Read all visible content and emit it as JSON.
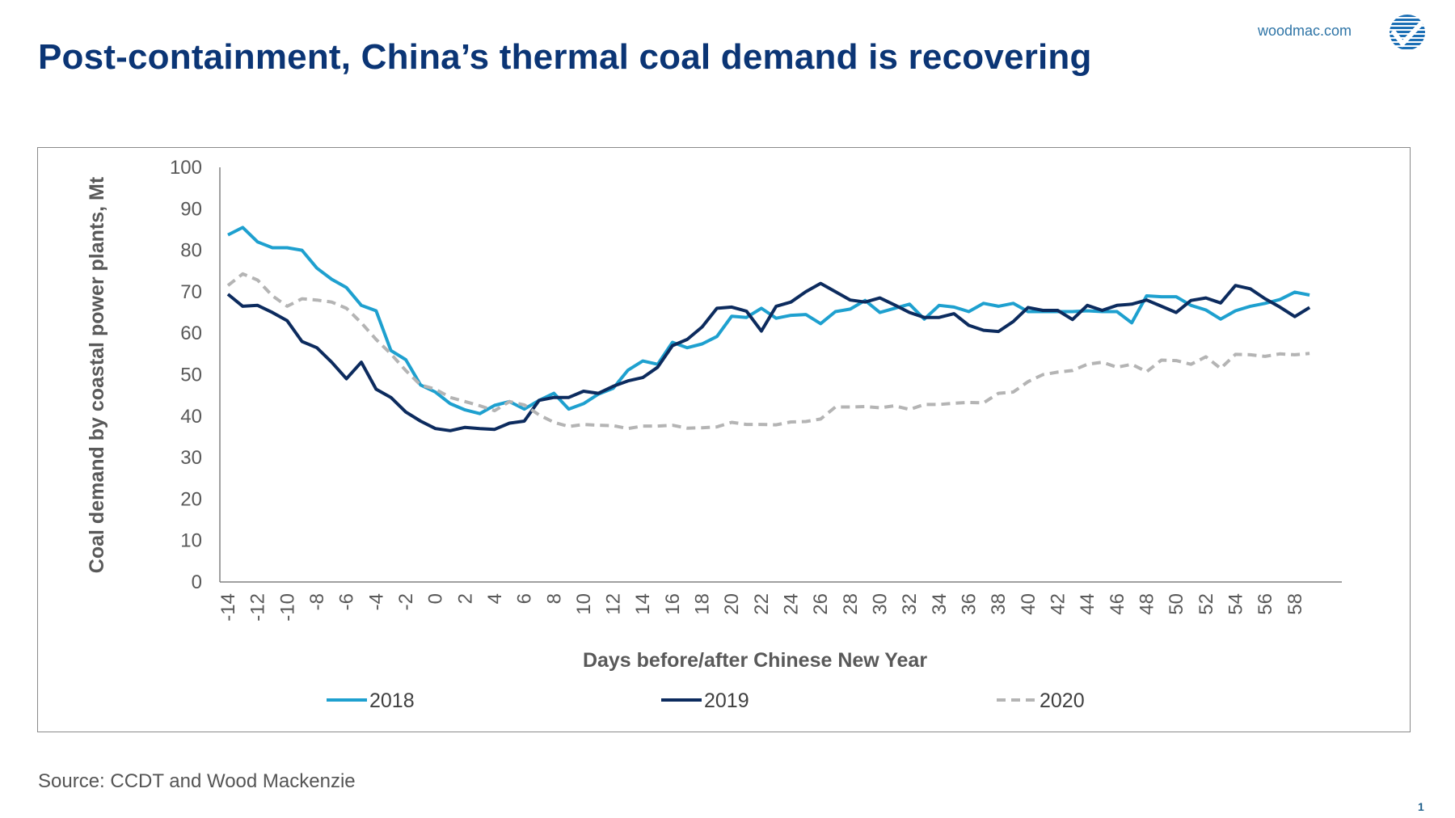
{
  "header": {
    "title": "Post-containment, China’s thermal coal demand is recovering",
    "site": "woodmac.com",
    "logo_icon": "woodmac-checkmark-globe-icon"
  },
  "footer": {
    "source": "Source: CCDT and Wood Mackenzie",
    "page_number": "1"
  },
  "chart_data": {
    "type": "line",
    "title": "",
    "xlabel": "Days before/after Chinese New Year",
    "ylabel": "Coal demand by coastal power plants, Mt",
    "ylim": [
      0,
      100
    ],
    "yticks": [
      0,
      10,
      20,
      30,
      40,
      50,
      60,
      70,
      80,
      90,
      100
    ],
    "xlim": [
      -14,
      59
    ],
    "xtick_labels": [
      "-14",
      "-12",
      "-10",
      "-8",
      "-6",
      "-4",
      "-2",
      "0",
      "2",
      "4",
      "6",
      "8",
      "10",
      "12",
      "14",
      "16",
      "18",
      "20",
      "22",
      "24",
      "26",
      "28",
      "30",
      "32",
      "34",
      "36",
      "38",
      "40",
      "42",
      "44",
      "46",
      "48",
      "50",
      "52",
      "54",
      "56",
      "58"
    ],
    "grid": false,
    "legend": "bottom",
    "x": [
      -14,
      -13,
      -12,
      -11,
      -10,
      -9,
      -8,
      -7,
      -6,
      -5,
      -4,
      -3,
      -2,
      -1,
      0,
      1,
      2,
      3,
      4,
      5,
      6,
      7,
      8,
      9,
      10,
      11,
      12,
      13,
      14,
      15,
      16,
      17,
      18,
      19,
      20,
      21,
      22,
      23,
      24,
      25,
      26,
      27,
      28,
      29,
      30,
      31,
      32,
      33,
      34,
      35,
      36,
      37,
      38,
      39,
      40,
      41,
      42,
      43,
      44,
      45,
      46,
      47,
      48,
      49,
      50,
      51,
      52,
      53,
      54,
      55,
      56,
      57,
      58,
      59
    ],
    "series": [
      {
        "name": "2018",
        "color": "#1ea0cf",
        "dash": "solid",
        "values": [
          83.7,
          85.5,
          82.0,
          80.6,
          80.6,
          80.0,
          75.7,
          73.0,
          71.0,
          66.7,
          65.4,
          55.8,
          53.6,
          47.5,
          45.8,
          43.0,
          41.5,
          40.6,
          42.6,
          43.5,
          41.7,
          43.8,
          45.5,
          41.7,
          43.0,
          45.3,
          46.7,
          51.1,
          53.3,
          52.5,
          57.8,
          56.5,
          57.4,
          59.2,
          64.1,
          63.8,
          66.0,
          63.6,
          64.3,
          64.5,
          62.3,
          65.2,
          65.8,
          67.9,
          65.0,
          66.0,
          67.0,
          63.4,
          66.7,
          66.3,
          65.2,
          67.2,
          66.5,
          67.2,
          65.2,
          65.2,
          65.2,
          65.2,
          65.4,
          65.2,
          65.2,
          62.5,
          69.0,
          68.8,
          68.8,
          66.7,
          65.6,
          63.4,
          65.4,
          66.5,
          67.2,
          68.1,
          69.9,
          69.2
        ]
      },
      {
        "name": "2019",
        "color": "#0c2b5e",
        "dash": "solid",
        "values": [
          69.4,
          66.5,
          66.7,
          65.0,
          63.0,
          58.0,
          56.5,
          53.0,
          49.0,
          53.0,
          46.5,
          44.5,
          41.0,
          38.8,
          37.0,
          36.5,
          37.3,
          37.0,
          36.8,
          38.3,
          38.8,
          43.8,
          44.5,
          44.5,
          46.0,
          45.5,
          47.2,
          48.5,
          49.3,
          51.8,
          57.0,
          58.5,
          61.5,
          66.0,
          66.3,
          65.3,
          60.5,
          66.5,
          67.5,
          70.0,
          72.0,
          70.0,
          68.0,
          67.5,
          68.5,
          66.8,
          65.0,
          63.8,
          63.8,
          64.7,
          61.9,
          60.7,
          60.4,
          62.8,
          66.2,
          65.5,
          65.5,
          63.3,
          66.7,
          65.5,
          66.7,
          67.0,
          68.0,
          66.5,
          65.0,
          67.9,
          68.5,
          67.3,
          71.5,
          70.7,
          68.3,
          66.3,
          64.0,
          66.2
        ]
      },
      {
        "name": "2020",
        "color": "#b4b4b4",
        "dash": "dashed",
        "values": [
          71.5,
          74.3,
          72.8,
          69.0,
          66.5,
          68.3,
          68.0,
          67.5,
          66.0,
          62.5,
          58.5,
          55.0,
          51.0,
          47.5,
          46.5,
          44.5,
          43.5,
          42.5,
          41.3,
          43.5,
          42.7,
          40.3,
          38.5,
          37.5,
          38.0,
          37.8,
          37.7,
          37.0,
          37.6,
          37.6,
          37.8,
          37.1,
          37.2,
          37.4,
          38.5,
          38.0,
          38.0,
          37.9,
          38.6,
          38.7,
          39.3,
          42.2,
          42.2,
          42.3,
          42.0,
          42.5,
          41.6,
          42.8,
          42.8,
          43.1,
          43.3,
          43.2,
          45.5,
          45.8,
          48.3,
          50.0,
          50.6,
          51.0,
          52.5,
          53.0,
          51.8,
          52.5,
          50.7,
          53.5,
          53.4,
          52.5,
          54.3,
          51.5,
          54.9,
          54.8,
          54.4,
          55.0,
          54.8,
          55.1
        ]
      }
    ]
  }
}
